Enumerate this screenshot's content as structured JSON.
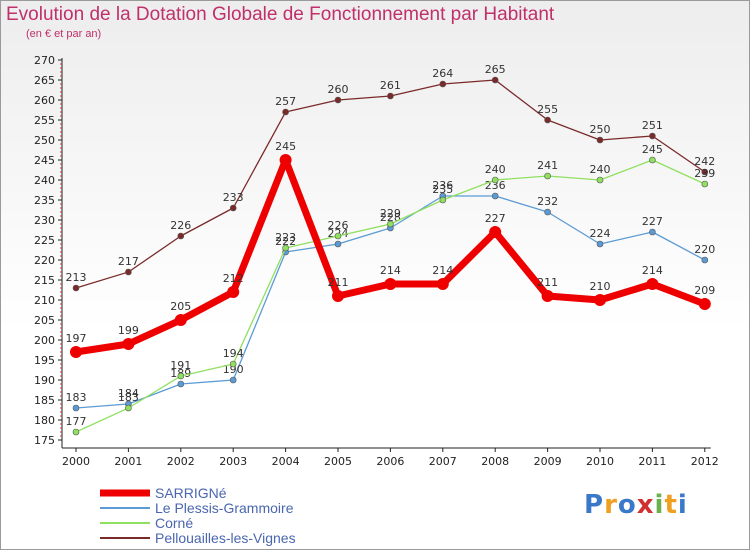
{
  "chart_data": {
    "type": "line",
    "title": "Evolution de la Dotation Globale de Fonctionnement par Habitant",
    "subtitle": "(en € et par an)",
    "xlabel": "",
    "ylabel": "",
    "ylim": [
      175,
      270
    ],
    "grid": false,
    "legend_position": "bottom-left",
    "categories": [
      "2000",
      "2001",
      "2002",
      "2003",
      "2004",
      "2005",
      "2006",
      "2007",
      "2008",
      "2009",
      "2010",
      "2011",
      "2012"
    ],
    "y_ticks": [
      "175",
      "180",
      "185",
      "190",
      "195",
      "200",
      "205",
      "210",
      "215",
      "220",
      "225",
      "230",
      "235",
      "240",
      "245",
      "250",
      "255",
      "260",
      "265",
      "270"
    ],
    "series": [
      {
        "name": "SARRIGNé",
        "color": "#ee0000",
        "values": [
          197,
          199,
          205,
          212,
          245,
          211,
          214,
          214,
          227,
          211,
          210,
          214,
          209
        ]
      },
      {
        "name": "Le Plessis-Grammoire",
        "color": "#5b9bd5",
        "values": [
          183,
          184,
          189,
          190,
          222,
          224,
          228,
          236,
          236,
          232,
          224,
          227,
          220
        ]
      },
      {
        "name": "Corné",
        "color": "#90e060",
        "values": [
          177,
          183,
          191,
          194,
          223,
          226,
          229,
          235,
          240,
          241,
          240,
          245,
          239
        ]
      },
      {
        "name": "Pellouailles-les-Vignes",
        "color": "#7b2a2a",
        "values": [
          213,
          217,
          226,
          233,
          257,
          260,
          261,
          264,
          265,
          255,
          250,
          251,
          242
        ]
      }
    ]
  },
  "logo": {
    "text": "Proxiti",
    "letters": [
      "P",
      "r",
      "o",
      "x",
      "i",
      "t",
      "i"
    ],
    "colors": [
      "#3a78c9",
      "#f0a020",
      "#3a78c9",
      "#d03030",
      "#6ab04c",
      "#f0a020",
      "#3a78c9"
    ]
  }
}
